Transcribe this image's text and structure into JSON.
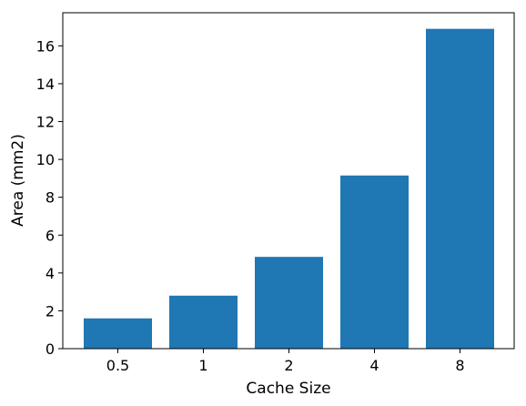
{
  "chart_data": {
    "type": "bar",
    "title": "",
    "xlabel": "Cache Size",
    "ylabel": "Area (mm2)",
    "categories": [
      "0.5",
      "1",
      "2",
      "4",
      "8"
    ],
    "values": [
      1.6,
      2.8,
      4.85,
      9.15,
      16.9
    ],
    "ylim": [
      0,
      17.75
    ],
    "yticks": [
      "0",
      "2",
      "4",
      "6",
      "8",
      "10",
      "12",
      "14",
      "16"
    ],
    "bar_color": "#1f77b4",
    "grid": false,
    "legend": "none"
  }
}
